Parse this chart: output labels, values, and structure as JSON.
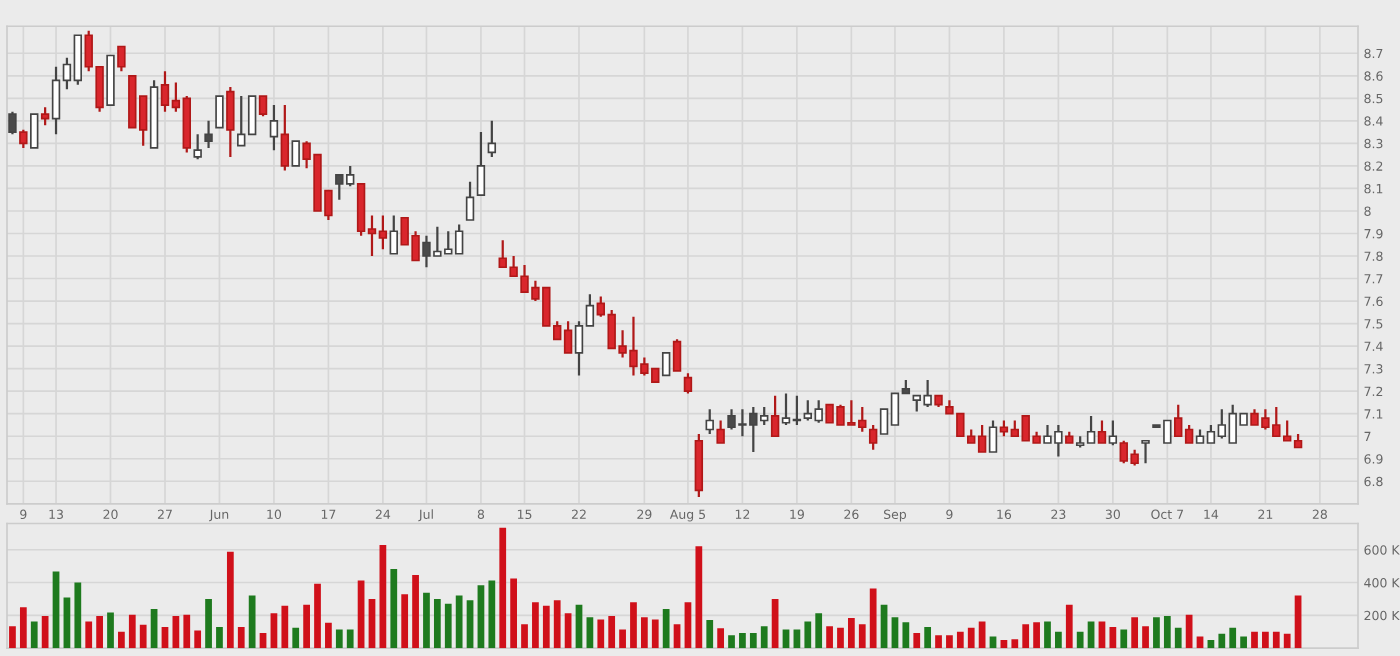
{
  "chart_data": [
    {
      "type": "candlestick",
      "categories": [
        null,
        "9",
        null,
        null,
        "13",
        null,
        null,
        null,
        null,
        "20",
        null,
        null,
        null,
        null,
        "27",
        null,
        null,
        null,
        null,
        "Jun",
        null,
        null,
        null,
        null,
        "10",
        null,
        null,
        null,
        null,
        "17",
        null,
        null,
        null,
        null,
        "24",
        null,
        null,
        null,
        "Jul",
        null,
        null,
        null,
        null,
        "8",
        null,
        null,
        null,
        "15",
        null,
        null,
        null,
        null,
        "22",
        null,
        null,
        null,
        null,
        null,
        "29",
        null,
        null,
        null,
        "Aug 5",
        null,
        null,
        null,
        null,
        "12",
        null,
        null,
        null,
        null,
        "19",
        null,
        null,
        null,
        null,
        "26",
        null,
        null,
        null,
        "Sep",
        null,
        null,
        null,
        null,
        "9",
        null,
        null,
        null,
        null,
        "16",
        null,
        null,
        null,
        null,
        "23",
        null,
        null,
        null,
        null,
        "30",
        null,
        null,
        null,
        null,
        "Oct 7",
        null,
        null,
        null,
        "14",
        null,
        null,
        null,
        null,
        "21",
        null,
        null,
        null,
        null,
        "28",
        null,
        null,
        null
      ],
      "ohlc": [
        [
          8.35,
          8.44,
          8.34,
          8.43
        ],
        [
          8.35,
          8.36,
          8.28,
          8.3
        ],
        [
          8.28,
          8.43,
          8.28,
          8.43
        ],
        [
          8.43,
          8.46,
          8.38,
          8.41
        ],
        [
          8.41,
          8.64,
          8.34,
          8.58
        ],
        [
          8.58,
          8.68,
          8.54,
          8.65
        ],
        [
          8.58,
          8.78,
          8.56,
          8.78
        ],
        [
          8.78,
          8.8,
          8.62,
          8.64
        ],
        [
          8.64,
          8.64,
          8.44,
          8.46
        ],
        [
          8.47,
          8.69,
          8.47,
          8.69
        ],
        [
          8.73,
          8.73,
          8.62,
          8.64
        ],
        [
          8.6,
          8.6,
          8.37,
          8.37
        ],
        [
          8.51,
          8.51,
          8.29,
          8.36
        ],
        [
          8.28,
          8.58,
          8.28,
          8.55
        ],
        [
          8.56,
          8.62,
          8.44,
          8.47
        ],
        [
          8.49,
          8.57,
          8.44,
          8.46
        ],
        [
          8.5,
          8.51,
          8.26,
          8.28
        ],
        [
          8.24,
          8.34,
          8.23,
          8.27
        ],
        [
          8.31,
          8.4,
          8.28,
          8.34
        ],
        [
          8.37,
          8.51,
          8.37,
          8.51
        ],
        [
          8.53,
          8.55,
          8.24,
          8.36
        ],
        [
          8.29,
          8.51,
          8.29,
          8.34
        ],
        [
          8.34,
          8.51,
          8.34,
          8.51
        ],
        [
          8.51,
          8.51,
          8.42,
          8.43
        ],
        [
          8.33,
          8.47,
          8.27,
          8.4
        ],
        [
          8.34,
          8.47,
          8.18,
          8.2
        ],
        [
          8.2,
          8.31,
          8.2,
          8.31
        ],
        [
          8.3,
          8.31,
          8.19,
          8.23
        ],
        [
          8.25,
          8.25,
          8.0,
          8.0
        ],
        [
          8.09,
          8.09,
          7.96,
          7.98
        ],
        [
          8.12,
          8.16,
          8.05,
          8.16
        ],
        [
          8.12,
          8.2,
          8.11,
          8.16
        ],
        [
          8.12,
          8.12,
          7.89,
          7.91
        ],
        [
          7.92,
          7.98,
          7.8,
          7.9
        ],
        [
          7.91,
          7.98,
          7.83,
          7.88
        ],
        [
          7.81,
          7.98,
          7.81,
          7.91
        ],
        [
          7.97,
          7.97,
          7.85,
          7.85
        ],
        [
          7.89,
          7.91,
          7.78,
          7.78
        ],
        [
          7.8,
          7.89,
          7.75,
          7.86
        ],
        [
          7.8,
          7.93,
          7.8,
          7.82
        ],
        [
          7.81,
          7.91,
          7.81,
          7.83
        ],
        [
          7.81,
          7.94,
          7.81,
          7.91
        ],
        [
          7.96,
          8.13,
          7.96,
          8.06
        ],
        [
          8.07,
          8.35,
          8.07,
          8.2
        ],
        [
          8.26,
          8.4,
          8.24,
          8.3
        ],
        [
          7.79,
          7.87,
          7.75,
          7.75
        ],
        [
          7.75,
          7.8,
          7.71,
          7.71
        ],
        [
          7.71,
          7.76,
          7.64,
          7.64
        ],
        [
          7.66,
          7.69,
          7.6,
          7.61
        ],
        [
          7.66,
          7.66,
          7.49,
          7.49
        ],
        [
          7.49,
          7.51,
          7.43,
          7.43
        ],
        [
          7.47,
          7.51,
          7.37,
          7.37
        ],
        [
          7.37,
          7.51,
          7.27,
          7.49
        ],
        [
          7.49,
          7.63,
          7.49,
          7.58
        ],
        [
          7.59,
          7.62,
          7.53,
          7.54
        ],
        [
          7.54,
          7.56,
          7.39,
          7.39
        ],
        [
          7.4,
          7.47,
          7.35,
          7.37
        ],
        [
          7.38,
          7.53,
          7.27,
          7.31
        ],
        [
          7.32,
          7.35,
          7.27,
          7.28
        ],
        [
          7.3,
          7.3,
          7.24,
          7.24
        ],
        [
          7.27,
          7.37,
          7.27,
          7.37
        ],
        [
          7.42,
          7.43,
          7.29,
          7.29
        ],
        [
          7.26,
          7.28,
          7.19,
          7.2
        ],
        [
          6.98,
          7.01,
          6.73,
          6.76
        ],
        [
          7.03,
          7.12,
          7.01,
          7.07
        ],
        [
          7.03,
          7.07,
          6.97,
          6.97
        ],
        [
          7.04,
          7.12,
          7.03,
          7.09
        ],
        [
          7.05,
          7.12,
          7.0,
          7.05
        ],
        [
          7.05,
          7.13,
          6.93,
          7.1
        ],
        [
          7.07,
          7.13,
          7.05,
          7.09
        ],
        [
          7.09,
          7.18,
          7.0,
          7.0
        ],
        [
          7.06,
          7.19,
          7.05,
          7.08
        ],
        [
          7.07,
          7.18,
          7.05,
          7.07
        ],
        [
          7.08,
          7.16,
          7.07,
          7.1
        ],
        [
          7.07,
          7.16,
          7.06,
          7.12
        ],
        [
          7.14,
          7.14,
          7.06,
          7.06
        ],
        [
          7.13,
          7.14,
          7.05,
          7.05
        ],
        [
          7.06,
          7.16,
          7.05,
          7.05
        ],
        [
          7.07,
          7.13,
          7.02,
          7.04
        ],
        [
          7.03,
          7.05,
          6.94,
          6.97
        ],
        [
          7.01,
          7.12,
          7.01,
          7.12
        ],
        [
          7.05,
          7.19,
          7.05,
          7.19
        ],
        [
          7.19,
          7.25,
          7.19,
          7.21
        ],
        [
          7.16,
          7.18,
          7.11,
          7.18
        ],
        [
          7.14,
          7.25,
          7.13,
          7.18
        ],
        [
          7.18,
          7.18,
          7.13,
          7.14
        ],
        [
          7.13,
          7.16,
          7.1,
          7.1
        ],
        [
          7.1,
          7.1,
          7.0,
          7.0
        ],
        [
          7.0,
          7.03,
          6.97,
          6.97
        ],
        [
          7.0,
          7.05,
          6.93,
          6.93
        ],
        [
          6.93,
          7.07,
          6.93,
          7.04
        ],
        [
          7.04,
          7.07,
          7.0,
          7.02
        ],
        [
          7.03,
          7.07,
          7.0,
          7.0
        ],
        [
          7.09,
          7.09,
          6.98,
          6.98
        ],
        [
          7.0,
          7.02,
          6.97,
          6.97
        ],
        [
          6.97,
          7.05,
          6.97,
          7.0
        ],
        [
          6.97,
          7.05,
          6.91,
          7.02
        ],
        [
          7.0,
          7.02,
          6.97,
          6.97
        ],
        [
          6.96,
          7.0,
          6.95,
          6.97
        ],
        [
          6.97,
          7.09,
          6.97,
          7.02
        ],
        [
          7.02,
          7.07,
          6.97,
          6.97
        ],
        [
          6.97,
          7.07,
          6.96,
          7.0
        ],
        [
          6.97,
          6.98,
          6.88,
          6.89
        ],
        [
          6.92,
          6.94,
          6.87,
          6.88
        ],
        [
          6.97,
          6.98,
          6.88,
          6.98
        ],
        [
          7.04,
          7.05,
          7.04,
          7.05
        ],
        [
          6.97,
          7.07,
          6.97,
          7.07
        ],
        [
          7.08,
          7.14,
          7.0,
          7.0
        ],
        [
          7.03,
          7.05,
          6.97,
          6.97
        ],
        [
          6.97,
          7.03,
          6.97,
          7.0
        ],
        [
          6.97,
          7.05,
          6.97,
          7.02
        ],
        [
          7.0,
          7.12,
          6.99,
          7.05
        ],
        [
          6.97,
          7.14,
          6.97,
          7.1
        ],
        [
          7.05,
          7.1,
          7.05,
          7.1
        ],
        [
          7.1,
          7.12,
          7.05,
          7.05
        ],
        [
          7.08,
          7.12,
          7.03,
          7.04
        ],
        [
          7.05,
          7.13,
          7.0,
          7.0
        ],
        [
          7.0,
          7.07,
          6.98,
          6.98
        ],
        [
          6.98,
          7.01,
          6.95,
          6.95
        ],
        null,
        null,
        null,
        null,
        null
      ],
      "colors": [
        "#4a4a4a",
        "#d9262c",
        "#ffffff",
        "#d9262c",
        "#ffffff",
        "#ffffff",
        "#ffffff",
        "#d9262c",
        "#d9262c",
        "#ffffff",
        "#d9262c",
        "#d9262c",
        "#d9262c",
        "#ffffff",
        "#d9262c",
        "#d9262c",
        "#d9262c",
        "#ffffff",
        "#4a4a4a",
        "#ffffff",
        "#d9262c",
        "#ffffff",
        "#ffffff",
        "#d9262c",
        "#ffffff",
        "#d9262c",
        "#ffffff",
        "#d9262c",
        "#d9262c",
        "#d9262c",
        "#4a4a4a",
        "#ffffff",
        "#d9262c",
        "#d9262c",
        "#d9262c",
        "#ffffff",
        "#d9262c",
        "#d9262c",
        "#4a4a4a",
        "#ffffff",
        "#ffffff",
        "#ffffff",
        "#ffffff",
        "#ffffff",
        "#ffffff",
        "#d9262c",
        "#d9262c",
        "#d9262c",
        "#d9262c",
        "#d9262c",
        "#d9262c",
        "#d9262c",
        "#ffffff",
        "#ffffff",
        "#d9262c",
        "#d9262c",
        "#d9262c",
        "#d9262c",
        "#d9262c",
        "#d9262c",
        "#ffffff",
        "#d9262c",
        "#d9262c",
        "#d9262c",
        "#ffffff",
        "#d9262c",
        "#4a4a4a",
        "#ffffff",
        "#4a4a4a",
        "#ffffff",
        "#d9262c",
        "#ffffff",
        "#ffffff",
        "#ffffff",
        "#ffffff",
        "#d9262c",
        "#d9262c",
        "#d9262c",
        "#d9262c",
        "#d9262c",
        "#ffffff",
        "#ffffff",
        "#4a4a4a",
        "#ffffff",
        "#ffffff",
        "#d9262c",
        "#d9262c",
        "#d9262c",
        "#d9262c",
        "#d9262c",
        "#ffffff",
        "#d9262c",
        "#d9262c",
        "#d9262c",
        "#d9262c",
        "#ffffff",
        "#ffffff",
        "#d9262c",
        "#ffffff",
        "#ffffff",
        "#d9262c",
        "#ffffff",
        "#d9262c",
        "#d9262c",
        "#ffffff",
        "#4a4a4a",
        "#ffffff",
        "#d9262c",
        "#d9262c",
        "#ffffff",
        "#ffffff",
        "#ffffff",
        "#ffffff",
        "#ffffff",
        "#d9262c",
        "#d9262c",
        "#d9262c",
        "#d9262c",
        "#d9262c",
        null,
        null,
        null,
        null,
        null
      ],
      "ylim": [
        6.7,
        8.82
      ],
      "yticks": [
        6.8,
        6.9,
        7,
        7.1,
        7.2,
        7.3,
        7.4,
        7.5,
        7.6,
        7.7,
        7.8,
        7.9,
        8,
        8.1,
        8.2,
        8.3,
        8.4,
        8.5,
        8.6,
        8.7
      ],
      "grid": true
    },
    {
      "type": "bar",
      "categories": [
        null,
        null,
        null,
        null,
        null,
        null,
        null,
        null,
        null,
        null,
        null,
        null,
        null,
        null,
        null,
        null,
        null,
        null,
        null,
        null,
        null,
        null,
        null,
        null,
        null,
        null,
        null,
        null,
        null,
        null,
        null,
        null,
        null,
        null,
        null,
        null,
        null,
        null,
        null,
        null,
        null,
        null,
        null,
        null,
        null,
        null,
        null,
        null,
        null,
        null,
        null,
        null,
        null,
        null,
        null,
        null,
        null,
        null,
        null,
        null,
        null,
        null,
        null,
        null,
        null,
        null,
        null,
        null,
        null,
        null,
        null,
        null,
        null,
        null,
        null,
        null,
        null,
        null,
        null,
        null,
        null,
        null,
        null,
        null,
        null,
        null,
        null,
        null,
        null,
        null,
        null,
        null,
        null,
        null,
        null,
        null,
        null,
        null,
        null,
        null,
        null,
        null,
        null,
        null,
        null,
        null,
        null,
        null,
        null,
        null,
        null,
        null,
        null,
        null,
        null,
        null,
        null,
        null,
        null,
        null,
        null,
        null,
        null,
        null
      ],
      "values": [
        134000,
        250000,
        163000,
        196000,
        467000,
        308000,
        400000,
        163000,
        196000,
        217000,
        100000,
        204000,
        142000,
        238000,
        129000,
        196000,
        204000,
        108000,
        300000,
        129000,
        588000,
        129000,
        321000,
        92000,
        213000,
        258000,
        125000,
        265000,
        392000,
        154000,
        113000,
        113000,
        413000,
        300000,
        629000,
        483000,
        329000,
        446000,
        338000,
        300000,
        271000,
        321000,
        292000,
        383000,
        413000,
        734000,
        425000,
        146000,
        279000,
        258000,
        292000,
        213000,
        265000,
        188000,
        175000,
        196000,
        113000,
        279000,
        188000,
        175000,
        238000,
        146000,
        279000,
        621000,
        171000,
        121000,
        79000,
        92000,
        92000,
        134000,
        300000,
        113000,
        113000,
        163000,
        213000,
        134000,
        125000,
        183000,
        146000,
        363000,
        265000,
        188000,
        158000,
        92000,
        129000,
        79000,
        79000,
        100000,
        125000,
        163000,
        71000,
        50000,
        54000,
        146000,
        158000,
        163000,
        100000,
        265000,
        100000,
        163000,
        163000,
        129000,
        113000,
        188000,
        134000,
        188000,
        196000,
        125000,
        204000,
        71000,
        50000,
        88000,
        125000,
        71000,
        100000,
        100000,
        100000,
        88000,
        321000,
        null,
        null,
        null,
        null,
        null
      ],
      "colors": [
        "#d0101a",
        "#d0101a",
        "#1e7a1e",
        "#d0101a",
        "#1e7a1e",
        "#1e7a1e",
        "#1e7a1e",
        "#d0101a",
        "#d0101a",
        "#1e7a1e",
        "#d0101a",
        "#d0101a",
        "#d0101a",
        "#1e7a1e",
        "#d0101a",
        "#d0101a",
        "#d0101a",
        "#d0101a",
        "#1e7a1e",
        "#1e7a1e",
        "#d0101a",
        "#d0101a",
        "#1e7a1e",
        "#d0101a",
        "#d0101a",
        "#d0101a",
        "#1e7a1e",
        "#d0101a",
        "#d0101a",
        "#d0101a",
        "#1e7a1e",
        "#1e7a1e",
        "#d0101a",
        "#d0101a",
        "#d0101a",
        "#1e7a1e",
        "#d0101a",
        "#d0101a",
        "#1e7a1e",
        "#1e7a1e",
        "#1e7a1e",
        "#1e7a1e",
        "#1e7a1e",
        "#1e7a1e",
        "#1e7a1e",
        "#d0101a",
        "#d0101a",
        "#d0101a",
        "#d0101a",
        "#d0101a",
        "#d0101a",
        "#d0101a",
        "#1e7a1e",
        "#1e7a1e",
        "#d0101a",
        "#d0101a",
        "#d0101a",
        "#d0101a",
        "#d0101a",
        "#d0101a",
        "#1e7a1e",
        "#d0101a",
        "#d0101a",
        "#d0101a",
        "#1e7a1e",
        "#d0101a",
        "#1e7a1e",
        "#1e7a1e",
        "#1e7a1e",
        "#1e7a1e",
        "#d0101a",
        "#1e7a1e",
        "#1e7a1e",
        "#1e7a1e",
        "#1e7a1e",
        "#d0101a",
        "#d0101a",
        "#d0101a",
        "#d0101a",
        "#d0101a",
        "#1e7a1e",
        "#1e7a1e",
        "#1e7a1e",
        "#d0101a",
        "#1e7a1e",
        "#d0101a",
        "#d0101a",
        "#d0101a",
        "#d0101a",
        "#d0101a",
        "#1e7a1e",
        "#d0101a",
        "#d0101a",
        "#d0101a",
        "#d0101a",
        "#1e7a1e",
        "#1e7a1e",
        "#d0101a",
        "#1e7a1e",
        "#1e7a1e",
        "#d0101a",
        "#d0101a",
        "#1e7a1e",
        "#d0101a",
        "#d0101a",
        "#1e7a1e",
        "#1e7a1e",
        "#1e7a1e",
        "#d0101a",
        "#d0101a",
        "#1e7a1e",
        "#1e7a1e",
        "#1e7a1e",
        "#1e7a1e",
        "#d0101a",
        "#d0101a",
        "#d0101a",
        "#d0101a",
        "#d0101a",
        null,
        null,
        null,
        null,
        null
      ],
      "ylim": [
        0,
        760000
      ],
      "yticks": [
        {
          "value": 200000,
          "label": "200 K"
        },
        {
          "value": 400000,
          "label": "400 K"
        },
        {
          "value": 600000,
          "label": "600 K"
        }
      ],
      "tick_labels": "y",
      "grid": true
    }
  ]
}
